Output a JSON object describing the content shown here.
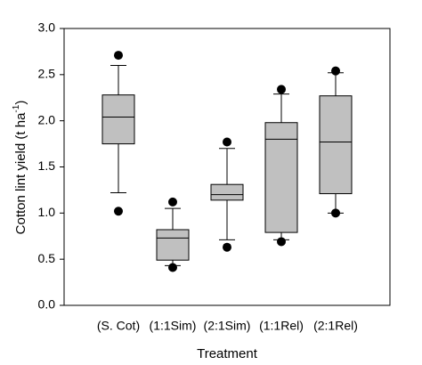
{
  "chart_data": {
    "type": "box",
    "xlabel": "Treatment",
    "ylabel": "Cotton lint yield (t ha",
    "ylabel_sup": "-1",
    "ylabel_end": ")",
    "categories": [
      "(S. Cot)",
      "(1:1Sim)",
      "(2:1Sim)",
      "(1:1Rel)",
      "(2:1Rel)"
    ],
    "whisker_low": [
      1.22,
      0.43,
      0.71,
      0.71,
      1.0
    ],
    "q1": [
      1.75,
      0.49,
      1.14,
      0.79,
      1.21
    ],
    "median": [
      2.04,
      0.73,
      1.2,
      1.8,
      1.77
    ],
    "q3": [
      2.28,
      0.82,
      1.31,
      1.98,
      2.27
    ],
    "whisker_high": [
      2.6,
      1.05,
      1.7,
      2.29,
      2.52
    ],
    "outlier_high": [
      2.71,
      1.12,
      1.77,
      2.34,
      2.54
    ],
    "outlier_low": [
      1.02,
      0.41,
      0.63,
      0.69,
      1.0
    ],
    "color": "#c0c0c0",
    "ylim": [
      0,
      3
    ],
    "yticks": [
      {
        "value": 0,
        "label": "0.0"
      },
      0.5,
      {
        "value": 1,
        "label": "1.0"
      },
      1.5,
      {
        "value": 2,
        "label": "2.0"
      },
      2.5,
      {
        "value": 3,
        "label": "3.0"
      }
    ]
  }
}
